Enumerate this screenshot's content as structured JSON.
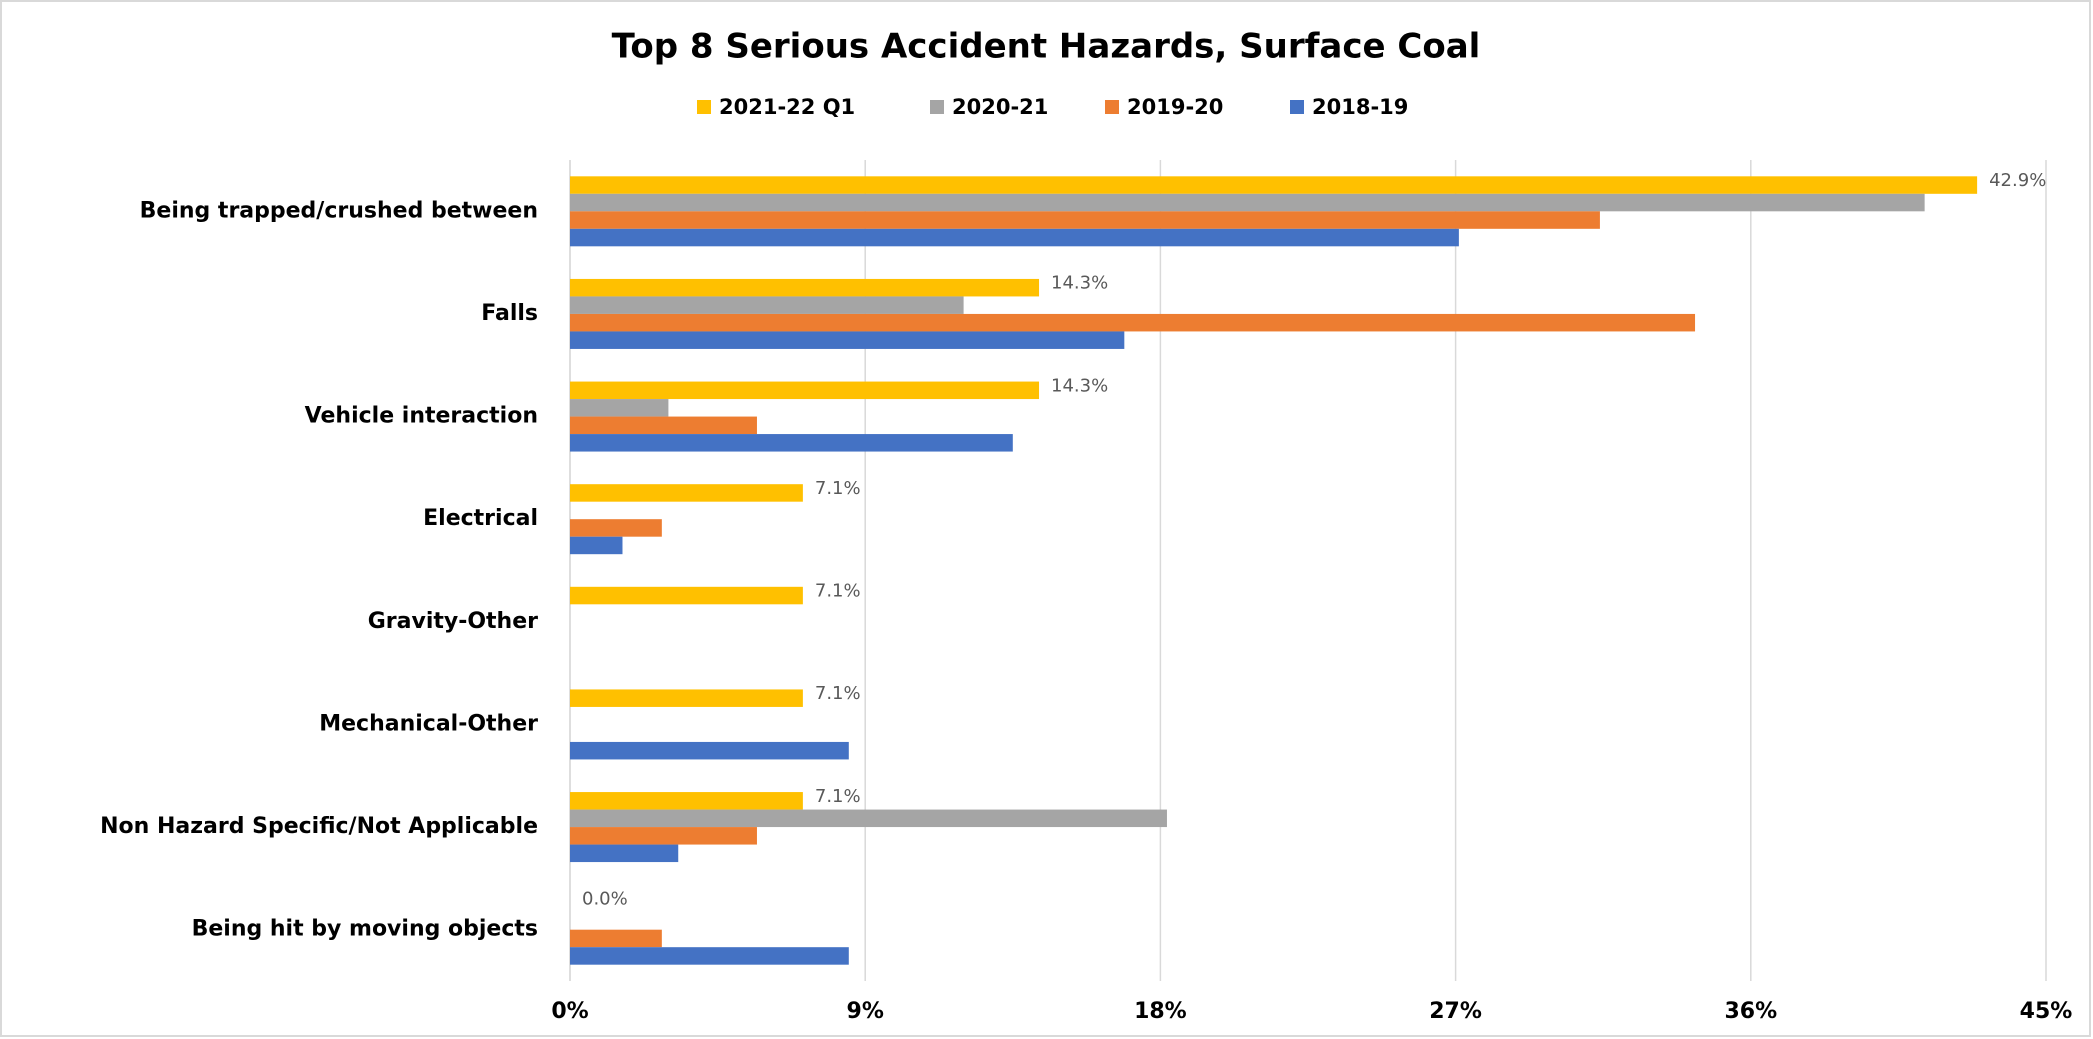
{
  "chart_data": {
    "type": "hbar",
    "title": "Top 8 Serious Accident Hazards, Surface Coal",
    "categories": [
      "Being trapped/crushed between",
      "Falls",
      "Vehicle interaction",
      "Electrical",
      "Gravity-Other",
      "Mechanical-Other",
      "Non Hazard Specific/Not Applicable",
      "Being hit by moving objects"
    ],
    "series": [
      {
        "name": "2021-22 Q1",
        "color": "#ffc000",
        "values": [
          42.9,
          14.3,
          14.3,
          7.1,
          7.1,
          7.1,
          7.1,
          0.0
        ],
        "value_labels": [
          "42.9%",
          "14.3%",
          "14.3%",
          "7.1%",
          "7.1%",
          "7.1%",
          "7.1%",
          "0.0%"
        ]
      },
      {
        "name": "2020-21",
        "color": "#a5a5a5",
        "values": [
          41.3,
          12.0,
          3.0,
          0,
          0,
          0,
          18.2,
          0
        ]
      },
      {
        "name": "2019-20",
        "color": "#ed7d31",
        "values": [
          31.4,
          34.3,
          5.7,
          2.8,
          0,
          0,
          5.7,
          2.8
        ]
      },
      {
        "name": "2018-19",
        "color": "#4472c4",
        "values": [
          27.1,
          16.9,
          13.5,
          1.6,
          0,
          8.5,
          3.3,
          8.5
        ]
      }
    ],
    "xlim": [
      0,
      45
    ],
    "xticks": [
      {
        "value": 0,
        "label": "0%"
      },
      {
        "value": 9,
        "label": "9%"
      },
      {
        "value": 18,
        "label": "18%"
      },
      {
        "value": 27,
        "label": "27%"
      },
      {
        "value": 36,
        "label": "36%"
      },
      {
        "value": 45,
        "label": "45%"
      }
    ],
    "grid": true,
    "legend": "top"
  }
}
